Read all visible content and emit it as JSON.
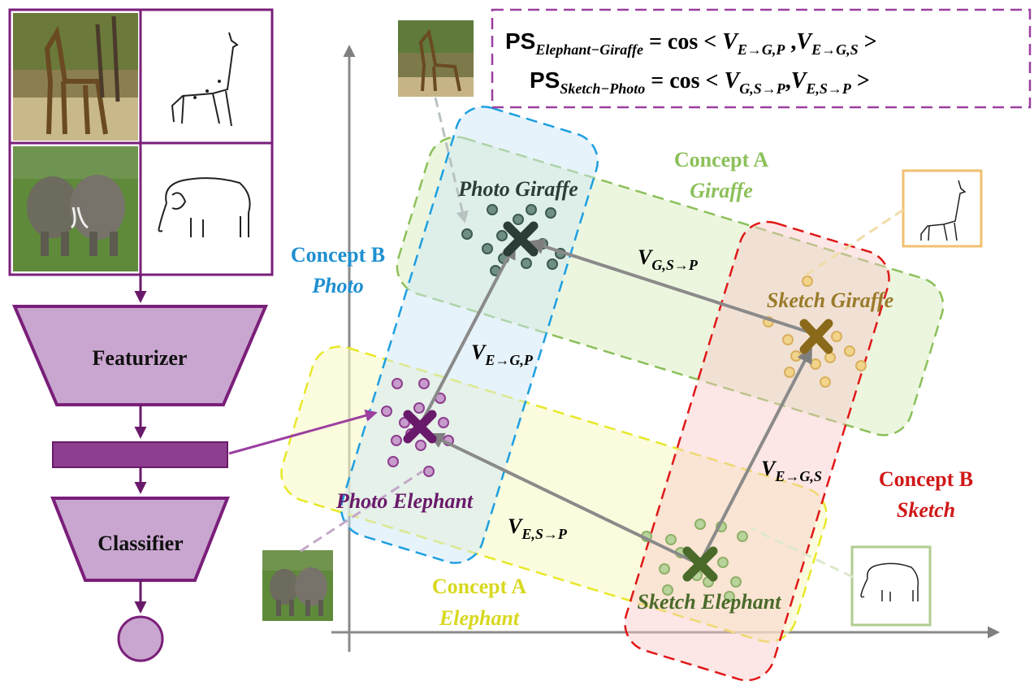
{
  "pipeline": {
    "featurizer_label": "Featurizer",
    "classifier_label": "Classifier"
  },
  "formula": {
    "ps1_prefix": "PS",
    "ps1_sub": "Elephant−Giraffe",
    "ps1_cos": " = cos < ",
    "ps1_v1": "V",
    "ps1_v1_sub": "E→G,P",
    "ps1_mid": " ,",
    "ps1_v2": "V",
    "ps1_v2_sub": "E→G,S",
    "ps1_end": " >",
    "ps2_prefix": "PS",
    "ps2_sub": "Sketch−Photo",
    "ps2_cos": " = cos < ",
    "ps2_v1": "V",
    "ps2_v1_sub": "G,S→P",
    "ps2_mid": ",",
    "ps2_v2": "V",
    "ps2_v2_sub": "E,S→P",
    "ps2_end": " >"
  },
  "concepts": {
    "a_giraffe_line1": "Concept A",
    "a_giraffe_line2": "Giraffe",
    "b_photo_line1": "Concept B",
    "b_photo_line2": "Photo",
    "b_sketch_line1": "Concept B",
    "b_sketch_line2": "Sketch",
    "a_elephant_line1": "Concept A",
    "a_elephant_line2": "Elephant"
  },
  "clusters": {
    "photo_giraffe": "Photo Giraffe",
    "sketch_giraffe": "Sketch Giraffe",
    "photo_elephant": "Photo Elephant",
    "sketch_elephant": "Sketch Elephant"
  },
  "vectors": {
    "v_gsp": "V",
    "v_gsp_sub": "G,S→P",
    "v_egp": "V",
    "v_egp_sub": "E→G,P",
    "v_egs": "V",
    "v_egs_sub": "E→G,S",
    "v_esp": "V",
    "v_esp_sub": "E,S→P"
  },
  "colors": {
    "purple": "#7a1f7a",
    "purple_fill": "#c9a6cf",
    "green": "#8cc05a",
    "blue": "#1e9fe0",
    "red": "#e01818",
    "yellow": "#e8e82a",
    "arrow_gray": "#7f7f7f"
  }
}
